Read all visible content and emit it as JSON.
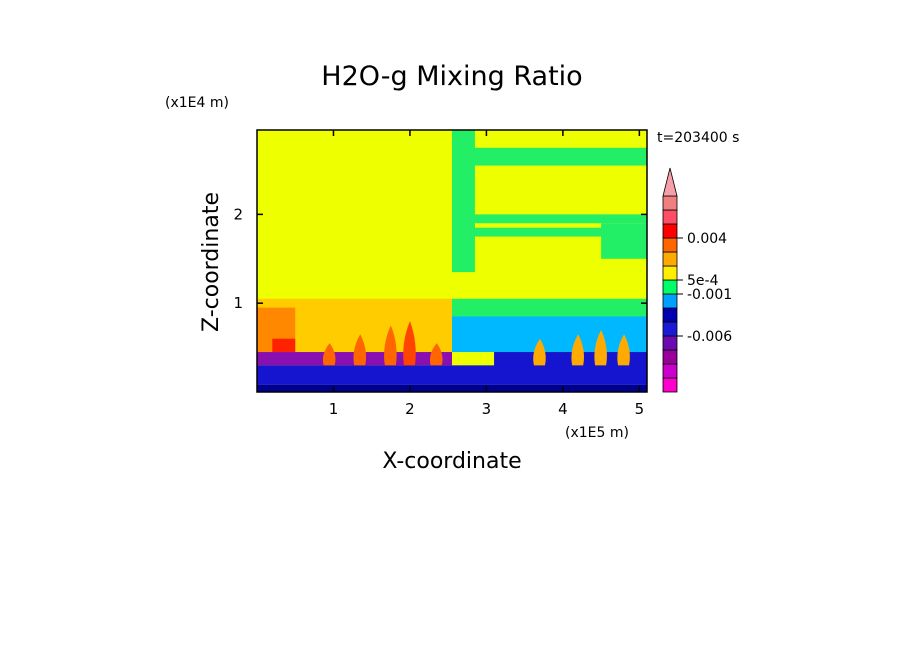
{
  "chart_data": {
    "type": "heatmap",
    "title": "H2O-g Mixing Ratio",
    "xlabel": "X-coordinate",
    "ylabel": "Z-coordinate",
    "x_scale_label": "(x1E5 m)",
    "y_scale_label": "(x1E4 m)",
    "time_label": "t=203400 s",
    "xlim": [
      0,
      5.1
    ],
    "ylim": [
      0,
      2.95
    ],
    "x_ticks": [
      {
        "value": 1,
        "label": "1"
      },
      {
        "value": 2,
        "label": "2"
      },
      {
        "value": 3,
        "label": "3"
      },
      {
        "value": 4,
        "label": "4"
      },
      {
        "value": 5,
        "label": "5"
      }
    ],
    "y_ticks": [
      {
        "value": 1,
        "label": "1"
      },
      {
        "value": 2,
        "label": "2"
      }
    ],
    "colorbar": {
      "levels": [
        "#ff00cc",
        "#cc00cc",
        "#990099",
        "#6a0ab0",
        "#1a1ad6",
        "#0000b0",
        "#00a0ff",
        "#00ff66",
        "#ffee00",
        "#ffaa00",
        "#ff6600",
        "#ff0000",
        "#ff4d66",
        "#f08080"
      ],
      "labels": [
        {
          "level_index": 4,
          "text": "-0.006"
        },
        {
          "level_index": 7,
          "text": "-0.001"
        },
        {
          "level_index": 8,
          "text": "5e-4"
        },
        {
          "level_index": 11,
          "text": "0.004"
        }
      ],
      "over_color": "#f5a0a8"
    },
    "regions": [
      {
        "x0": 0,
        "x1": 2.55,
        "z0": 0,
        "z1": 2.95,
        "color": "#eeff00"
      },
      {
        "x0": 2.55,
        "x1": 5.1,
        "z0": 0,
        "z1": 2.95,
        "color": "#eeff00"
      },
      {
        "x0": 2.55,
        "x1": 2.85,
        "z0": 1.35,
        "z1": 2.95,
        "color": "#22ee66"
      },
      {
        "x0": 2.55,
        "x1": 5.1,
        "z0": 2.55,
        "z1": 2.75,
        "color": "#22ee66"
      },
      {
        "x0": 2.55,
        "x1": 5.1,
        "z0": 1.9,
        "z1": 2.0,
        "color": "#22ee66"
      },
      {
        "x0": 2.55,
        "x1": 5.1,
        "z0": 1.75,
        "z1": 1.85,
        "color": "#22ee66"
      },
      {
        "x0": 4.5,
        "x1": 5.1,
        "z0": 1.5,
        "z1": 1.9,
        "color": "#22ee66"
      },
      {
        "x0": 2.55,
        "x1": 5.1,
        "z0": 0.85,
        "z1": 1.05,
        "color": "#22ee66"
      },
      {
        "x0": 2.55,
        "x1": 5.1,
        "z0": 0.45,
        "z1": 0.85,
        "color": "#00b8ff"
      },
      {
        "x0": 0,
        "x1": 2.55,
        "z0": 0.45,
        "z1": 1.05,
        "color": "#ffcc00"
      },
      {
        "x0": 0,
        "x1": 0.5,
        "z0": 0.45,
        "z1": 0.95,
        "color": "#ff8800"
      },
      {
        "x0": 0.2,
        "x1": 0.5,
        "z0": 0.45,
        "z1": 0.6,
        "color": "#ff2200"
      },
      {
        "x0": 0,
        "x1": 2.55,
        "z0": 0.3,
        "z1": 0.45,
        "color": "#8a0fb0"
      },
      {
        "x0": 0,
        "x1": 5.1,
        "z0": 0.08,
        "z1": 0.3,
        "color": "#1515d0"
      },
      {
        "x0": 0,
        "x1": 5.1,
        "z0": 0,
        "z1": 0.08,
        "color": "#000090"
      },
      {
        "x0": 3.1,
        "x1": 5.1,
        "z0": 0.18,
        "z1": 0.45,
        "color": "#1515d0"
      }
    ],
    "plumes": [
      {
        "x": 0.95,
        "z": 0.55,
        "color": "#ff6600"
      },
      {
        "x": 1.35,
        "z": 0.65,
        "color": "#ff6600"
      },
      {
        "x": 1.75,
        "z": 0.75,
        "color": "#ff6600"
      },
      {
        "x": 2.0,
        "z": 0.8,
        "color": "#ff4400"
      },
      {
        "x": 2.35,
        "z": 0.55,
        "color": "#ff6600"
      },
      {
        "x": 3.7,
        "z": 0.6,
        "color": "#ffaa00"
      },
      {
        "x": 4.2,
        "z": 0.65,
        "color": "#ffaa00"
      },
      {
        "x": 4.5,
        "z": 0.7,
        "color": "#ffaa00"
      },
      {
        "x": 4.8,
        "z": 0.65,
        "color": "#ffaa00"
      }
    ]
  }
}
